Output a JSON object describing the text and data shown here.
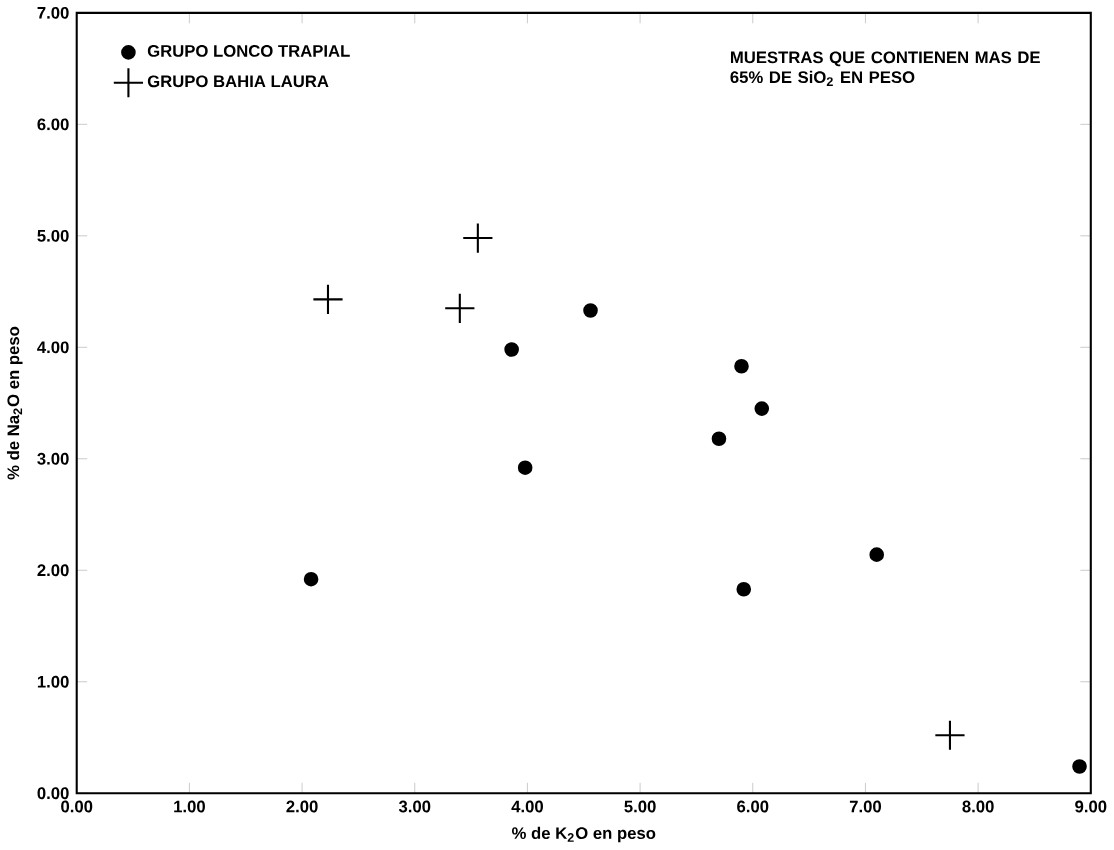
{
  "chart_data": {
    "type": "scatter",
    "xlabel": "% de K$_{2}$O en peso",
    "ylabel": "% de Na$_{2}$O en peso",
    "annotations": [
      "MUESTRAS QUE CONTIENEN MAS DE 65% DE SiO$_{2}$ EN PESO"
    ],
    "xlim": [
      0,
      9
    ],
    "ylim": [
      0,
      7
    ],
    "xticks": [
      {
        "value": 0,
        "label": "0.00"
      },
      {
        "value": 1,
        "label": "1.00"
      },
      {
        "value": 2,
        "label": "2.00"
      },
      {
        "value": 3,
        "label": "3.00"
      },
      {
        "value": 4,
        "label": "4.00"
      },
      {
        "value": 5,
        "label": "5.00"
      },
      {
        "value": 6,
        "label": "6.00"
      },
      {
        "value": 7,
        "label": "7.00"
      },
      {
        "value": 8,
        "label": "8.00"
      },
      {
        "value": 9,
        "label": "9.00"
      }
    ],
    "yticks": [
      {
        "value": 0,
        "label": "0.00"
      },
      {
        "value": 1,
        "label": "1.00"
      },
      {
        "value": 2,
        "label": "2.00"
      },
      {
        "value": 3,
        "label": "3.00"
      },
      {
        "value": 4,
        "label": "4.00"
      },
      {
        "value": 5,
        "label": "5.00"
      },
      {
        "value": 6,
        "label": "6.00"
      },
      {
        "value": 7,
        "label": "7.00"
      }
    ],
    "legend": "top left",
    "grid": false,
    "series": [
      {
        "name": "GRUPO LONCO TRAPIAL",
        "color": "#000000",
        "marker": "circle",
        "x": [
          2.08,
          3.86,
          3.98,
          4.56,
          5.7,
          5.9,
          6.08,
          5.92,
          7.1,
          8.9
        ],
        "values": [
          1.92,
          3.98,
          2.92,
          4.33,
          3.18,
          3.83,
          3.45,
          1.83,
          2.14,
          0.24
        ]
      },
      {
        "name": "GRUPO BAHIA LAURA",
        "color": "#000000",
        "marker": "cross",
        "x": [
          2.23,
          3.4,
          3.56,
          7.75
        ],
        "values": [
          4.43,
          4.35,
          4.98,
          0.52
        ]
      }
    ]
  }
}
